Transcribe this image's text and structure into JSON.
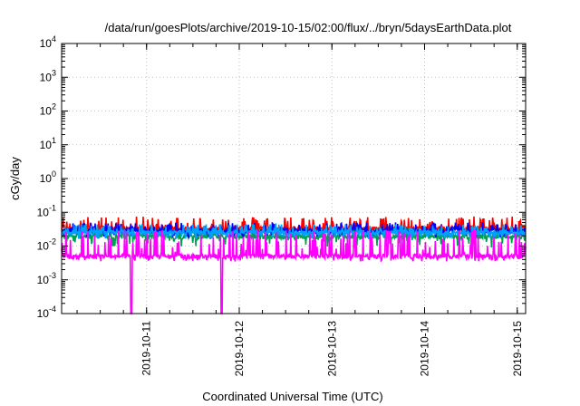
{
  "chart_data": {
    "type": "line",
    "title": "/data/run/goesPlots/archive/2019-10-15/02:00/flux/../bryn/5daysEarthData.plot",
    "xlabel": "Coordinated Universal Time (UTC)",
    "ylabel": "cGy/day",
    "yscale": "log",
    "ylim": [
      0.0001,
      10000
    ],
    "xlim": [
      "2019-10-10 02:00",
      "2019-10-15 02:10"
    ],
    "grid": true,
    "legend": "none",
    "y_ticks": [
      {
        "value": 0.0001,
        "base": "10",
        "exp": "-4"
      },
      {
        "value": 0.001,
        "base": "10",
        "exp": "-3"
      },
      {
        "value": 0.01,
        "base": "10",
        "exp": "-2"
      },
      {
        "value": 0.1,
        "base": "10",
        "exp": "-1"
      },
      {
        "value": 1,
        "base": "10",
        "exp": "0"
      },
      {
        "value": 10,
        "base": "10",
        "exp": "1"
      },
      {
        "value": 100,
        "base": "10",
        "exp": "2"
      },
      {
        "value": 1000,
        "base": "10",
        "exp": "3"
      },
      {
        "value": 10000,
        "base": "10",
        "exp": "4"
      }
    ],
    "x_ticks": [
      {
        "value": "2019-10-11 00:00",
        "label": "2019-10-11"
      },
      {
        "value": "2019-10-12 00:00",
        "label": "2019-10-12"
      },
      {
        "value": "2019-10-13 00:00",
        "label": "2019-10-13"
      },
      {
        "value": "2019-10-14 00:00",
        "label": "2019-10-14"
      },
      {
        "value": "2019-10-15 00:00",
        "label": "2019-10-15"
      }
    ],
    "series": [
      {
        "color": "#ff0000",
        "baseline": 0.033,
        "high": 0.075,
        "low": 0.022
      },
      {
        "color": "#00a050",
        "baseline": 0.019,
        "high": 0.035,
        "low": 0.009
      },
      {
        "color": "#0000ff",
        "baseline": 0.028,
        "high": 0.05,
        "low": 0.018
      },
      {
        "color": "#00a0ff",
        "baseline": 0.025,
        "high": 0.045,
        "low": 0.016
      },
      {
        "color": "#ff00ff",
        "baseline": 0.005,
        "high": 0.03,
        "low": 0.0035,
        "dropouts": [
          "2019-10-10 20:00",
          "2019-10-11 19:30"
        ]
      }
    ]
  }
}
